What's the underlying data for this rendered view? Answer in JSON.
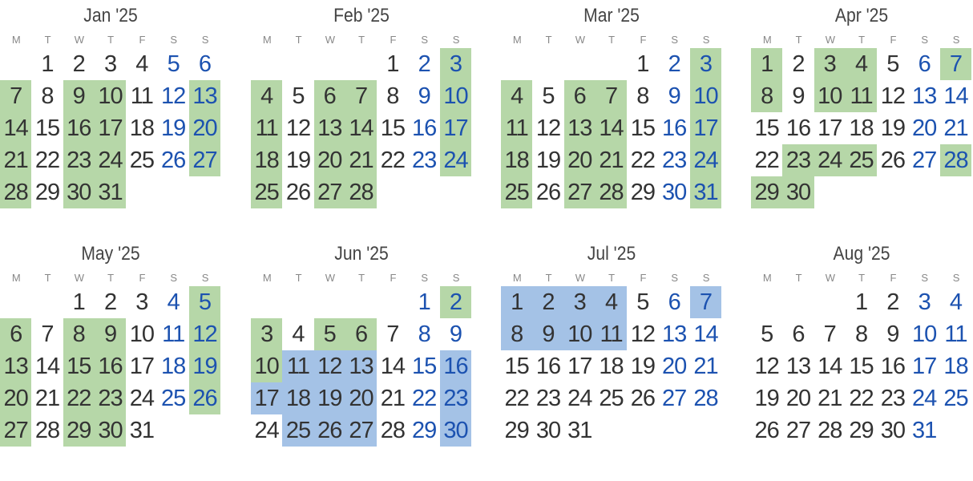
{
  "weekday_headers": [
    "M",
    "T",
    "W",
    "T",
    "F",
    "S",
    "S"
  ],
  "colors": {
    "green_highlight": "#b6d7a8",
    "blue_highlight": "#a4c2e6",
    "weekend_text": "#1c52b0",
    "weekday_text": "#333333"
  },
  "months": [
    {
      "title": "Jan '25",
      "first_weekday": 2,
      "days": 31,
      "green": [
        7,
        9,
        10,
        13,
        14,
        16,
        17,
        20,
        21,
        23,
        24,
        27,
        28,
        30,
        31
      ],
      "blue": []
    },
    {
      "title": "Feb '25",
      "first_weekday": 5,
      "days": 28,
      "green": [
        3,
        4,
        6,
        7,
        10,
        11,
        13,
        14,
        17,
        18,
        20,
        21,
        24,
        25,
        27,
        28
      ],
      "blue": []
    },
    {
      "title": "Mar '25",
      "first_weekday": 5,
      "days": 31,
      "green": [
        3,
        4,
        6,
        7,
        10,
        11,
        13,
        14,
        17,
        18,
        20,
        21,
        24,
        25,
        27,
        28,
        31
      ],
      "blue": []
    },
    {
      "title": "Apr '25",
      "first_weekday": 1,
      "days": 30,
      "green": [
        1,
        3,
        4,
        7,
        8,
        10,
        11,
        23,
        24,
        25,
        28,
        29,
        30
      ],
      "blue": []
    },
    {
      "title": "May '25",
      "first_weekday": 3,
      "days": 31,
      "green": [
        5,
        6,
        8,
        9,
        12,
        13,
        15,
        16,
        19,
        20,
        22,
        23,
        26,
        27,
        29,
        30
      ],
      "blue": []
    },
    {
      "title": "Jun '25",
      "first_weekday": 6,
      "days": 30,
      "green": [
        2,
        3,
        5,
        6,
        10
      ],
      "blue": [
        11,
        12,
        13,
        16,
        17,
        18,
        19,
        20,
        23,
        25,
        26,
        27,
        30
      ]
    },
    {
      "title": "Jul '25",
      "first_weekday": 1,
      "days": 31,
      "green": [],
      "blue": [
        1,
        2,
        3,
        4,
        7,
        8,
        9,
        10,
        11
      ]
    },
    {
      "title": "Aug '25",
      "first_weekday": 4,
      "days": 31,
      "green": [],
      "blue": []
    }
  ]
}
